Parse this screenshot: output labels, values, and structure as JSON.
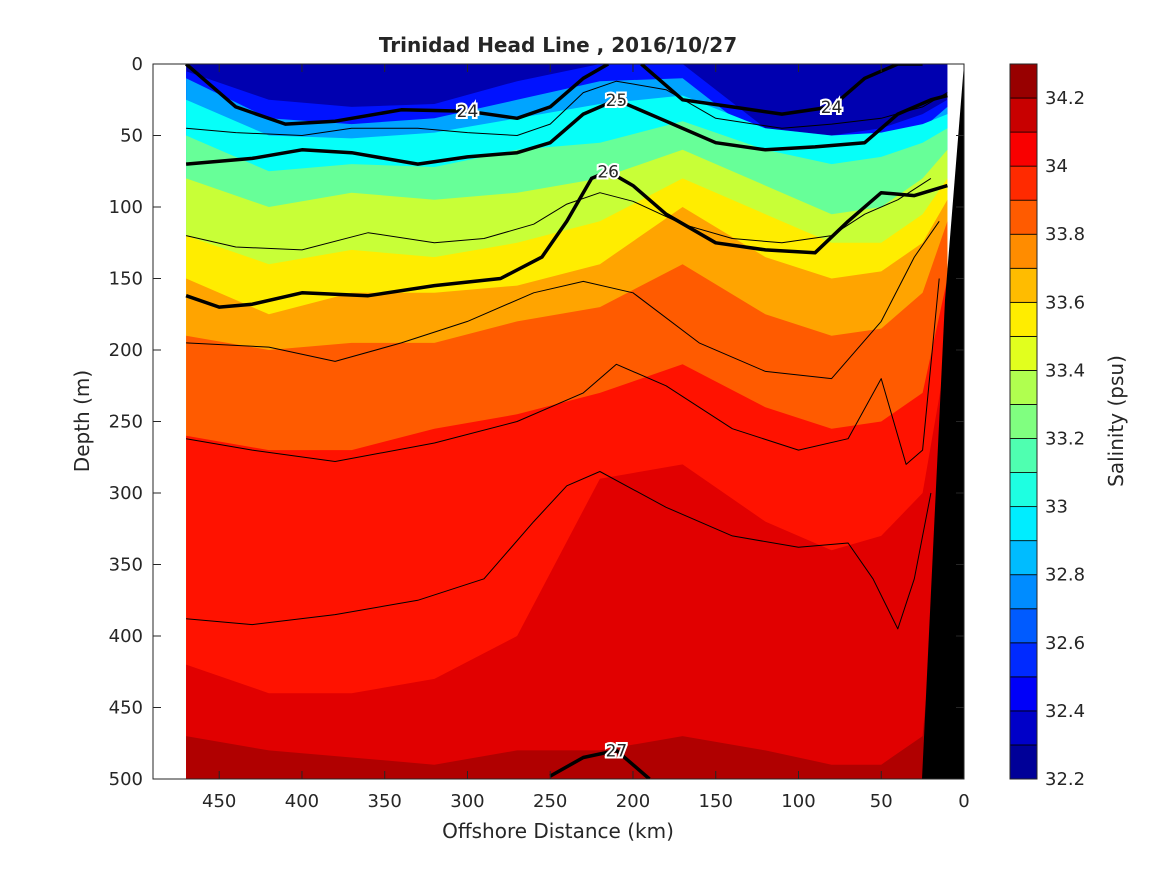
{
  "chart_data": {
    "type": "heatmap",
    "title": "Trinidad Head Line , 2016/10/27",
    "xlabel": "Offshore Distance (km)",
    "ylabel": "Depth (m)",
    "colorbar_label": "Salinity (psu)",
    "x_range": [
      490,
      0
    ],
    "x_reversed": true,
    "y_range": [
      0,
      500
    ],
    "y_reversed": true,
    "x_ticks": [
      450,
      400,
      350,
      300,
      250,
      200,
      150,
      100,
      50,
      0
    ],
    "y_ticks": [
      0,
      50,
      100,
      150,
      200,
      250,
      300,
      350,
      400,
      450,
      500
    ],
    "colorbar_range": [
      32.2,
      34.3
    ],
    "colorbar_step": 0.1,
    "colorbar_ticks": [
      "32.2",
      "32.4",
      "32.6",
      "32.8",
      "33",
      "33.2",
      "33.4",
      "33.6",
      "33.8",
      "34",
      "34.2"
    ],
    "data_x_range": [
      470,
      10
    ],
    "colormap": "jet",
    "grid": false,
    "salinity_layers": [
      {
        "salinity": 32.5,
        "depths": [
          5,
          25,
          30,
          28,
          12,
          0,
          0,
          45,
          50,
          45,
          35,
          25
        ]
      },
      {
        "salinity": 32.8,
        "depths": [
          10,
          38,
          42,
          38,
          25,
          12,
          10,
          55,
          62,
          58,
          45,
          30
        ]
      },
      {
        "salinity": 33.0,
        "depths": [
          25,
          50,
          52,
          48,
          38,
          28,
          22,
          45,
          50,
          48,
          42,
          35
        ]
      },
      {
        "salinity": 33.2,
        "depths": [
          50,
          75,
          70,
          72,
          60,
          55,
          40,
          60,
          70,
          65,
          55,
          45
        ]
      },
      {
        "salinity": 33.4,
        "depths": [
          80,
          100,
          90,
          95,
          90,
          80,
          60,
          85,
          105,
          100,
          80,
          60
        ]
      },
      {
        "salinity": 33.55,
        "depths": [
          120,
          140,
          130,
          135,
          125,
          110,
          80,
          105,
          125,
          125,
          105,
          80
        ]
      },
      {
        "salinity": 33.7,
        "depths": [
          150,
          175,
          160,
          160,
          155,
          140,
          100,
          135,
          150,
          145,
          125,
          95
        ]
      },
      {
        "salinity": 33.85,
        "depths": [
          190,
          200,
          195,
          195,
          180,
          170,
          140,
          175,
          190,
          185,
          160,
          110
        ]
      },
      {
        "salinity": 34.0,
        "depths": [
          260,
          270,
          270,
          255,
          245,
          230,
          210,
          240,
          255,
          250,
          230,
          150
        ]
      },
      {
        "salinity": 34.1,
        "depths": [
          420,
          440,
          440,
          430,
          400,
          290,
          280,
          320,
          340,
          330,
          300,
          200
        ]
      },
      {
        "salinity": 34.2,
        "depths": [
          470,
          480,
          485,
          490,
          480,
          480,
          470,
          480,
          490,
          490,
          470,
          280
        ]
      }
    ],
    "layer_x": [
      470,
      420,
      370,
      320,
      270,
      220,
      170,
      120,
      80,
      50,
      25,
      10
    ],
    "density_contours": [
      {
        "label": "24",
        "bold": true,
        "x": [
          470,
          440,
          410,
          380,
          340,
          300,
          270,
          250,
          230,
          215
        ],
        "y": [
          0,
          30,
          42,
          40,
          32,
          33,
          38,
          30,
          10,
          0
        ]
      },
      {
        "label": "24",
        "bold": true,
        "x": [
          195,
          170,
          140,
          110,
          80,
          60,
          40,
          25
        ],
        "y": [
          0,
          25,
          30,
          35,
          30,
          10,
          0,
          0
        ]
      },
      {
        "label": "25",
        "bold": true,
        "x": [
          470,
          430,
          400,
          370,
          330,
          300,
          270,
          250,
          230,
          210,
          180,
          150,
          120,
          90,
          60,
          40,
          20,
          10
        ],
        "y": [
          70,
          66,
          60,
          62,
          70,
          65,
          62,
          55,
          35,
          25,
          40,
          55,
          60,
          58,
          55,
          35,
          25,
          22
        ]
      },
      {
        "label": "26",
        "bold": true,
        "x": [
          470,
          450,
          430,
          400,
          360,
          320,
          280,
          255,
          240,
          225,
          215,
          200,
          180,
          150,
          120,
          90,
          70,
          50,
          30,
          10
        ],
        "y": [
          162,
          170,
          168,
          160,
          162,
          155,
          150,
          135,
          110,
          80,
          75,
          85,
          105,
          125,
          130,
          132,
          110,
          90,
          92,
          85
        ]
      },
      {
        "label": "27",
        "bold": true,
        "x": [
          250,
          230,
          210,
          190
        ],
        "y": [
          498,
          485,
          480,
          500
        ]
      },
      {
        "label": "",
        "bold": false,
        "x": [
          470,
          420,
          380,
          340,
          300,
          260,
          230,
          200,
          160,
          120,
          80,
          50,
          30,
          15
        ],
        "y": [
          195,
          198,
          208,
          195,
          180,
          160,
          152,
          160,
          195,
          215,
          220,
          180,
          135,
          110
        ]
      },
      {
        "label": "",
        "bold": false,
        "x": [
          470,
          430,
          380,
          320,
          270,
          230,
          210,
          180,
          140,
          100,
          70,
          50,
          35,
          25,
          15
        ],
        "y": [
          262,
          270,
          278,
          265,
          250,
          230,
          210,
          225,
          255,
          270,
          262,
          220,
          280,
          270,
          150
        ]
      },
      {
        "label": "",
        "bold": false,
        "x": [
          470,
          430,
          380,
          330,
          290,
          260,
          240,
          220,
          180,
          140,
          100,
          70,
          55,
          40,
          30,
          20
        ],
        "y": [
          388,
          392,
          385,
          375,
          360,
          320,
          295,
          285,
          310,
          330,
          338,
          335,
          360,
          395,
          360,
          300
        ]
      },
      {
        "label": "",
        "bold": false,
        "x": [
          470,
          440,
          400,
          360,
          320,
          290,
          260,
          240,
          220,
          200,
          170,
          140,
          110,
          80,
          60,
          40,
          20
        ],
        "y": [
          120,
          128,
          130,
          118,
          125,
          122,
          112,
          98,
          90,
          96,
          112,
          122,
          125,
          120,
          105,
          95,
          80
        ]
      },
      {
        "label": "",
        "bold": false,
        "x": [
          470,
          440,
          400,
          370,
          330,
          300,
          270,
          250,
          230,
          210,
          180,
          150,
          110,
          80,
          50,
          25,
          10
        ],
        "y": [
          45,
          48,
          50,
          45,
          45,
          48,
          50,
          42,
          20,
          12,
          18,
          38,
          45,
          42,
          38,
          30,
          20
        ]
      }
    ]
  }
}
